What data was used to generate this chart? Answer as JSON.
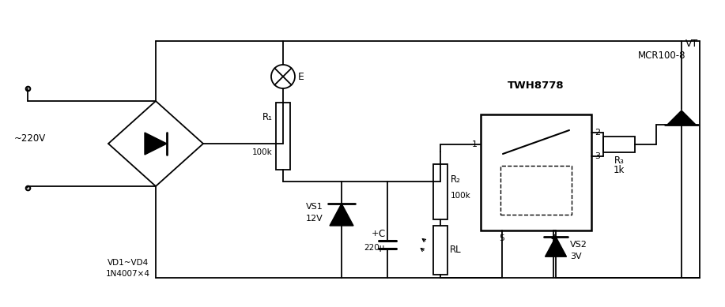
{
  "bg_color": "#ffffff",
  "line_color": "#000000",
  "figsize": [
    9.17,
    3.89
  ],
  "dpi": 100,
  "ac_label": "~220V",
  "vd_label1": "VD1~VD4",
  "vd_label2": "1N4007×4",
  "vs1_label1": "VS1",
  "vs1_label2": "12V",
  "cap_label1": "C",
  "cap_label2": "220μ",
  "r1_label1": "R₁",
  "r1_label2": "100k",
  "r2_label1": "R₂",
  "r2_label2": "100k",
  "r3_label1": "R₃",
  "r3_label2": "1k",
  "rl_label": "RL",
  "vs2_label1": "VS2",
  "vs2_label2": "3V",
  "ic_label": "TWH8778",
  "vt_label1": "VT",
  "vt_label2": "MCR100-8",
  "lamp_label": "E"
}
